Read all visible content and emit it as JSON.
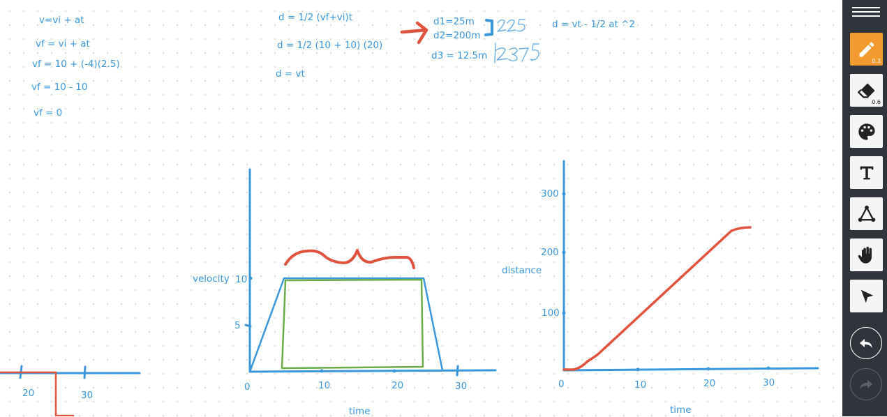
{
  "equations": {
    "left": [
      "v=vi + at",
      "vf = vi + at",
      "vf = 10 + (-4)(2.5)",
      "vf = 10 - 10",
      "vf = 0"
    ],
    "middle": [
      "d = 1/2 (vf+vi)t",
      "d = 1/2 (10 + 10) (20)",
      "d = vt"
    ],
    "distances": [
      "d1=25m",
      "d2=200m",
      "d3 = 12.5m"
    ],
    "sum1": "225",
    "sum2": "237.5",
    "right": "d = vt - 1/2 at ^2"
  },
  "graph_left": {
    "ticks_x": [
      "20",
      "30"
    ]
  },
  "graph_velocity": {
    "ylabel": "velocity",
    "xlabel": "time",
    "ticks_y": [
      "10",
      "5"
    ],
    "ticks_x": [
      "0",
      "10",
      "20",
      "30"
    ]
  },
  "graph_distance": {
    "ylabel": "distance",
    "xlabel": "time",
    "ticks_y": [
      "300",
      "200",
      "100"
    ],
    "ticks_x": [
      "0",
      "10",
      "20",
      "30"
    ]
  },
  "toolbar": {
    "pencil_size": "0.3",
    "eraser_size": "0.6",
    "accent_color": "#f29a2e",
    "bg_color": "#30353b",
    "tools": [
      "menu-icon",
      "pencil-icon",
      "eraser-icon",
      "palette-icon",
      "text-icon",
      "shape-icon",
      "hand-icon",
      "pointer-icon",
      "undo-icon",
      "redo-icon"
    ]
  },
  "ink_colors": {
    "blue": "#3a97dc",
    "red": "#e0533f",
    "green": "#6aad48"
  }
}
